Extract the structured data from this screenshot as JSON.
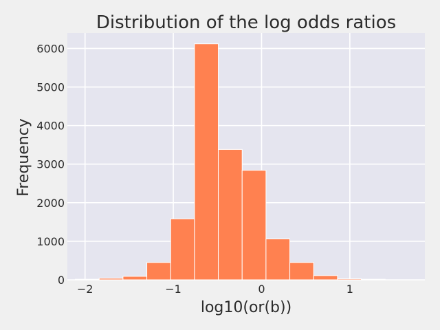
{
  "chart_data": {
    "type": "bar",
    "title": "Distribution of the log odds ratios",
    "xlabel": "log10(or(b))",
    "ylabel": "Frequency",
    "xlim": [
      -2.2,
      1.85
    ],
    "ylim": [
      0,
      6400
    ],
    "x_ticks": [
      -2,
      -1,
      0,
      1
    ],
    "x_tick_labels": [
      "−2",
      "−1",
      "0",
      "1"
    ],
    "y_ticks": [
      0,
      1000,
      2000,
      3000,
      4000,
      5000,
      6000
    ],
    "y_tick_labels": [
      "0",
      "1000",
      "2000",
      "3000",
      "4000",
      "5000",
      "6000"
    ],
    "grid": true,
    "bin_edges": [
      -2.11,
      -1.84,
      -1.57,
      -1.3,
      -1.03,
      -0.76,
      -0.49,
      -0.22,
      0.05,
      0.32,
      0.59,
      0.86,
      1.13,
      1.4
    ],
    "values": [
      15,
      40,
      90,
      450,
      1580,
      6120,
      3380,
      2840,
      1060,
      450,
      110,
      25,
      15
    ],
    "colors": {
      "bar": "#ff8150",
      "plot_bg": "#e5e5ef",
      "figure_bg": "#f0f0f0",
      "grid": "#ffffff"
    }
  }
}
